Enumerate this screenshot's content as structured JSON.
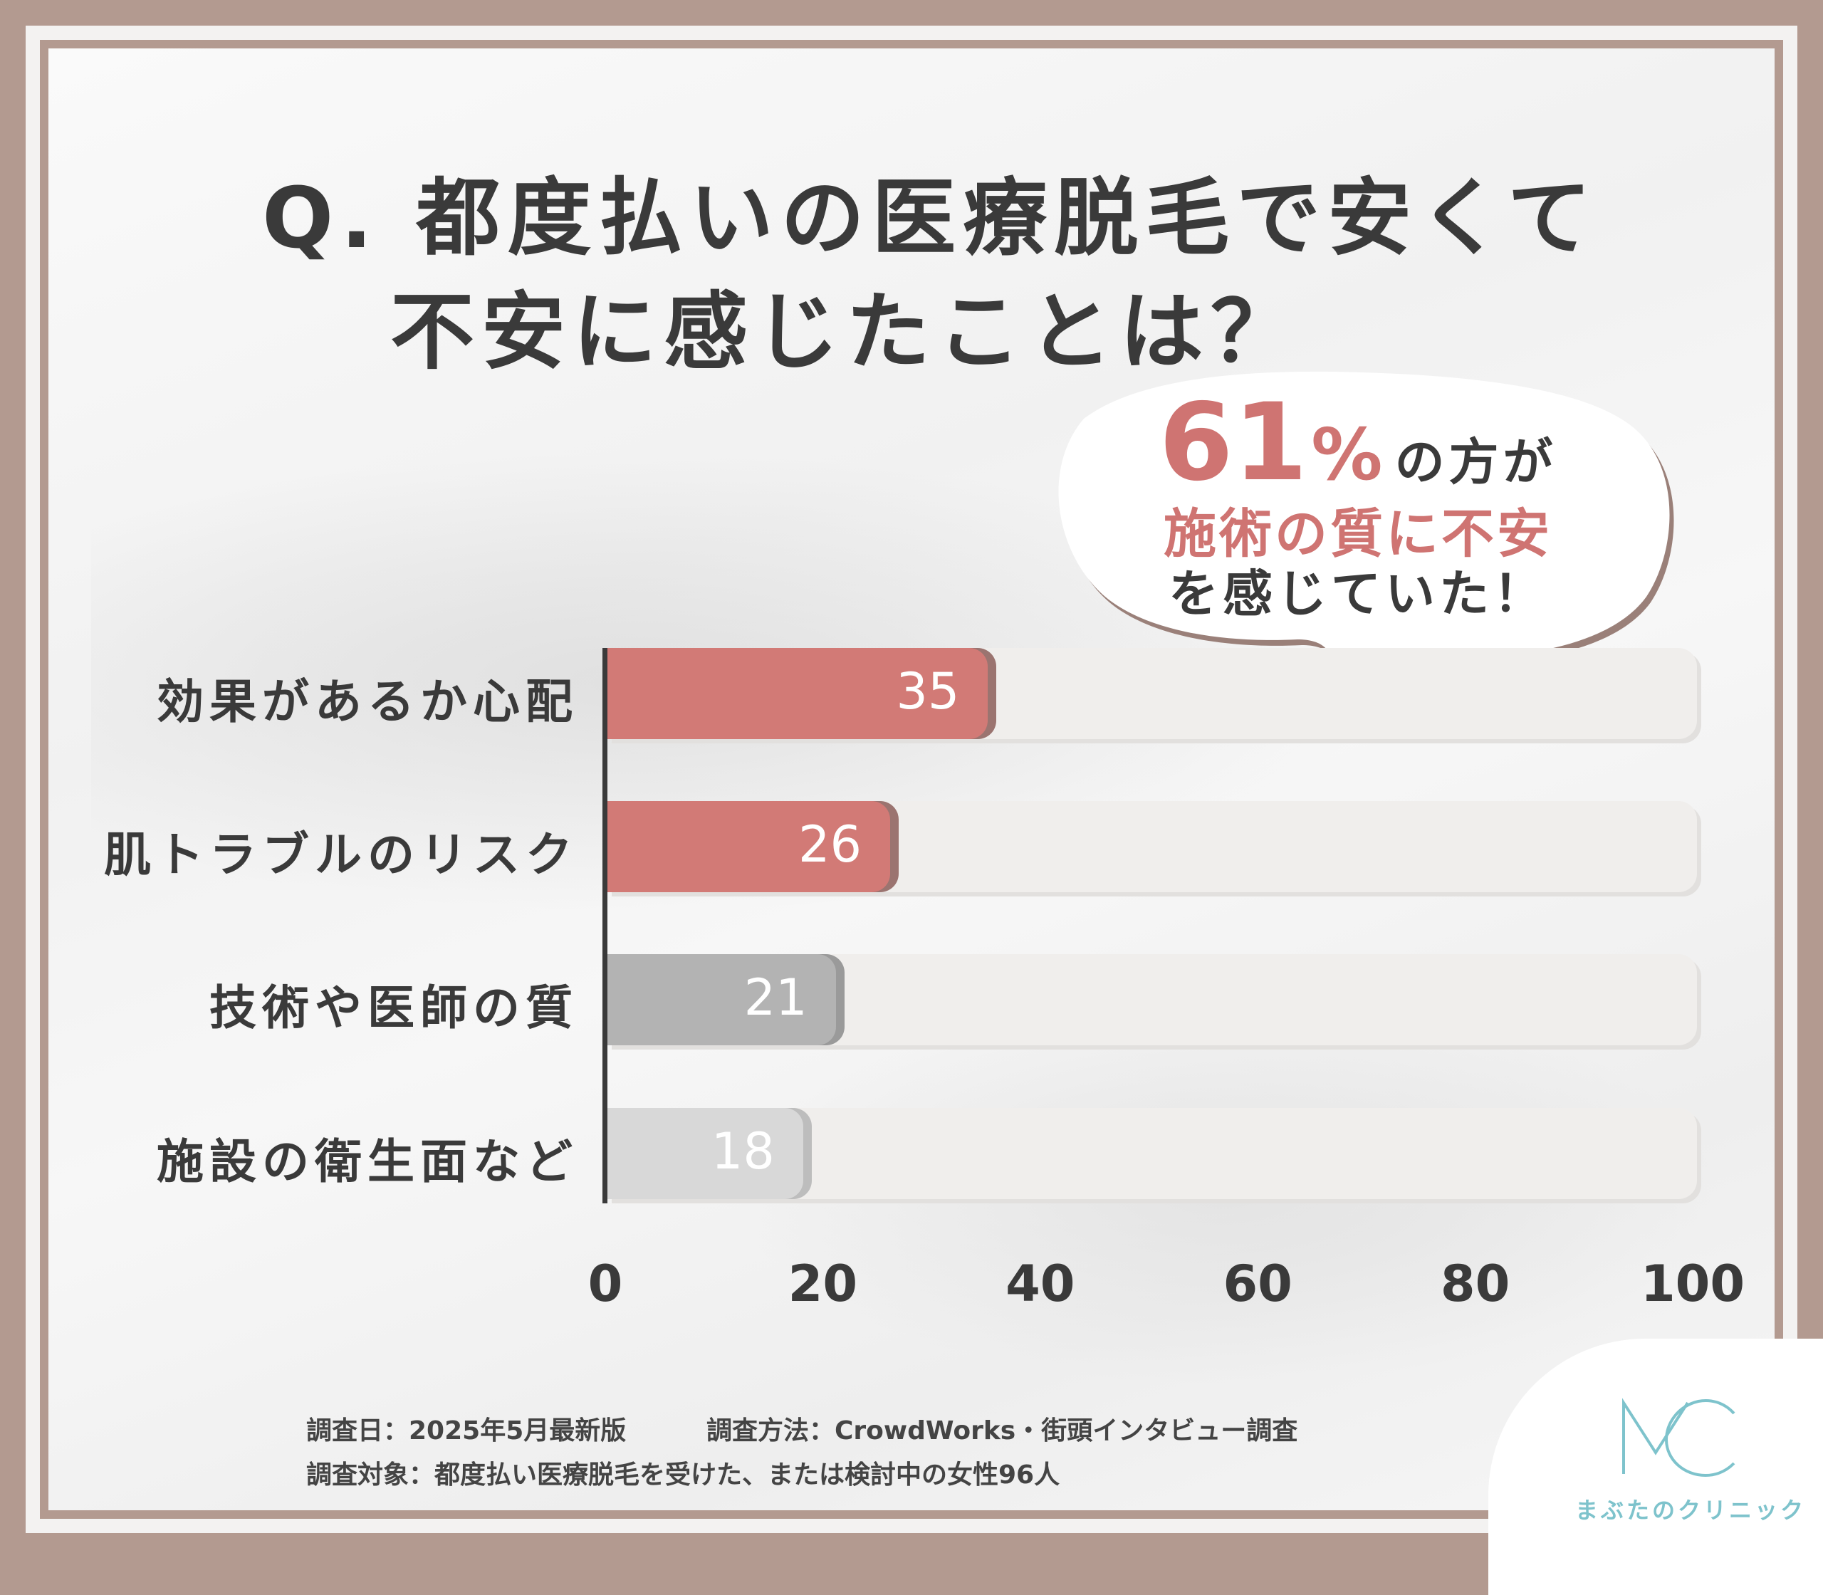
{
  "title": {
    "line1": "Q. 都度払いの医療脱毛で安くて",
    "line2": "不安に感じたことは？"
  },
  "callout": {
    "value": "61",
    "unit": "%",
    "line1_suffix": "の方が",
    "line2": "施術の質に不安",
    "line3": "を感じていた！"
  },
  "chart_data": {
    "type": "bar",
    "orientation": "horizontal",
    "categories": [
      "効果があるか心配",
      "肌トラブルのリスク",
      "技術や医師の質",
      "施設の衛生面など"
    ],
    "values": [
      35,
      26,
      21,
      18
    ],
    "xlim": [
      0,
      100
    ],
    "xticks": [
      "0",
      "20",
      "40",
      "60",
      "80",
      "100"
    ],
    "bar_colors": [
      "#d27a76",
      "#d27a76",
      "#b3b3b3",
      "#d8d8d8"
    ],
    "shadow_colors": [
      "#9b7470",
      "#9b7470",
      "#9a9a9a",
      "#bdbdbd"
    ]
  },
  "footnotes": {
    "date": "調査日：2025年5月最新版",
    "method": "調査方法：CrowdWorks・街頭インタビュー調査",
    "target": "調査対象：都度払い医療脱毛を受けた、または検討中の女性96人"
  },
  "logo": {
    "mark": "MC",
    "name": "まぶたのクリニック"
  },
  "colors": {
    "frame": "#b39a90",
    "accent": "#cf7472",
    "logo": "#7ec3cc"
  }
}
